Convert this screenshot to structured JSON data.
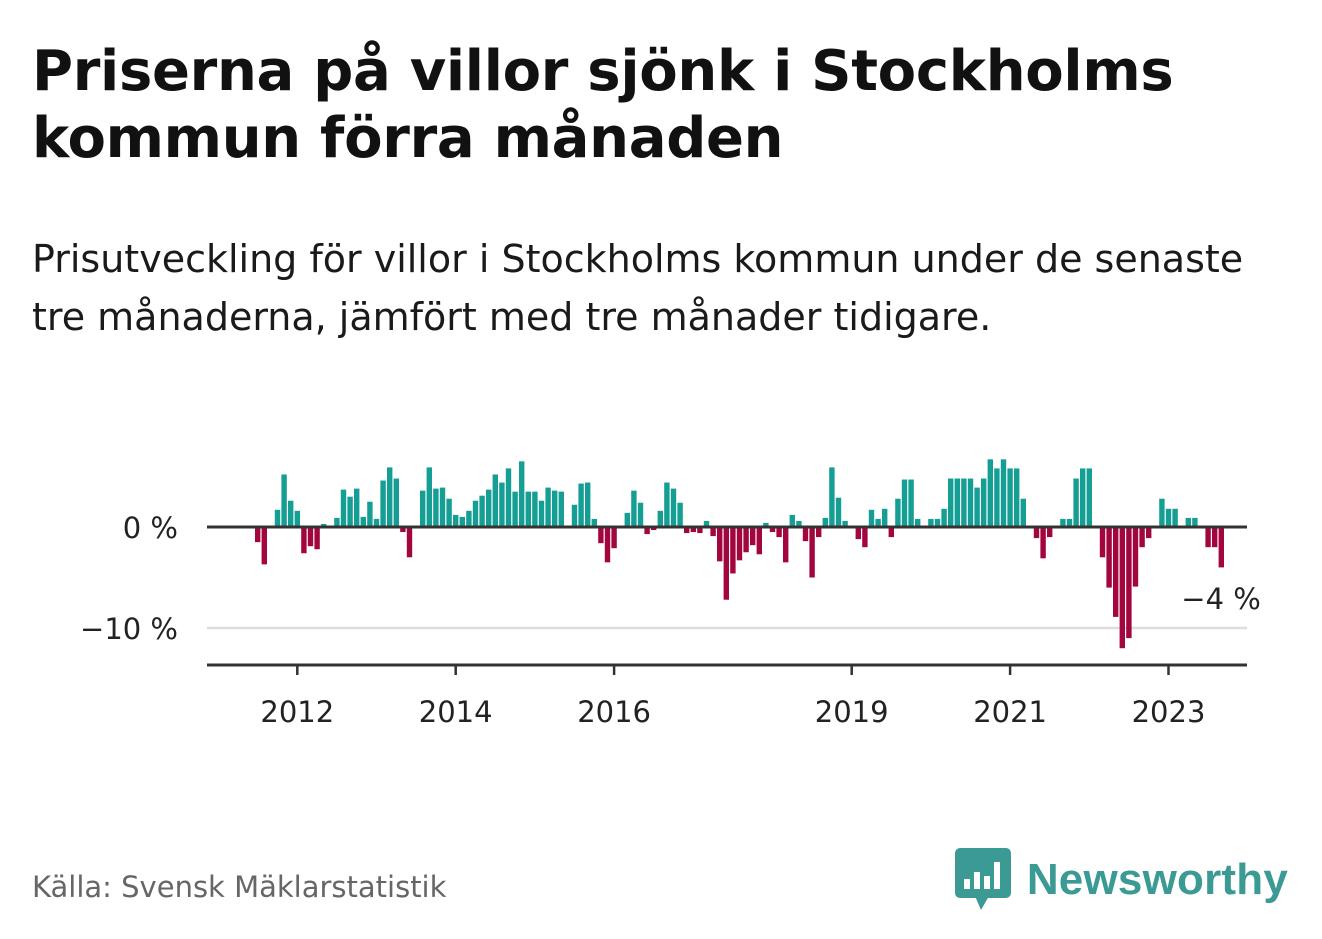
{
  "title": "Priserna på villor sjönk i Stockholms kommun förra månaden",
  "subtitle": "Prisutveckling för villor i Stockholms kommun under de senaste tre månaderna, jämfört med tre månader tidigare.",
  "source": "Källa: Svensk Mäklarstatistik",
  "brand": {
    "name": "Newsworthy",
    "logo_icon": "bar-chart-speech-bubble-icon",
    "color": "#3b9a94"
  },
  "colors": {
    "positive": "#159e94",
    "negative": "#a3053f",
    "axis": "#333333",
    "grid": "#dddddd"
  },
  "chart_data": {
    "type": "bar",
    "title": "",
    "xlabel": "",
    "ylabel": "",
    "unit": "%",
    "ylim": [
      -13.5,
      6.5
    ],
    "yticks": [
      0,
      -10
    ],
    "ytick_labels": [
      "0 %",
      "−10 %"
    ],
    "x_start": {
      "year": 2011,
      "month": 7
    },
    "xtick_labels": [
      "2012",
      "2014",
      "2016",
      "2019",
      "2021",
      "2023"
    ],
    "xtick_years": [
      2012,
      2014,
      2016,
      2019,
      2021,
      2023
    ],
    "annotation": {
      "label": "−4 %",
      "target": "last"
    },
    "values": [
      -1.5,
      -3.7,
      0,
      1.7,
      5.2,
      2.6,
      1.6,
      -2.6,
      -1.9,
      -2.2,
      0.3,
      0,
      0.9,
      3.7,
      3.0,
      3.8,
      1.0,
      2.5,
      0.8,
      4.6,
      5.9,
      4.8,
      -0.5,
      -3.0,
      0,
      3.6,
      5.9,
      3.8,
      3.9,
      2.8,
      1.2,
      1.0,
      1.6,
      2.6,
      3.1,
      3.7,
      5.2,
      4.4,
      5.8,
      3.5,
      6.5,
      3.5,
      3.5,
      2.6,
      3.9,
      3.6,
      3.5,
      0,
      2.2,
      4.3,
      4.4,
      0.8,
      -1.6,
      -3.5,
      -2.1,
      0,
      1.4,
      3.6,
      2.4,
      -0.7,
      -0.3,
      1.6,
      4.4,
      3.8,
      2.4,
      -0.6,
      -0.5,
      -0.6,
      0.6,
      -0.9,
      -3.4,
      -7.2,
      -4.6,
      -3.3,
      -2.5,
      -1.8,
      -2.7,
      0.4,
      -0.5,
      -1.0,
      -3.5,
      1.2,
      0.6,
      -1.4,
      -5.0,
      -1.0,
      0.9,
      5.9,
      2.9,
      0.6,
      0,
      -1.2,
      -2.0,
      1.7,
      0.8,
      1.8,
      -1.0,
      2.8,
      4.7,
      4.7,
      0.8,
      0,
      0.8,
      0.8,
      1.8,
      4.8,
      4.8,
      4.8,
      4.8,
      3.9,
      4.8,
      6.7,
      5.8,
      6.7,
      5.8,
      5.8,
      2.8,
      0,
      -1.1,
      -3.1,
      -1.0,
      0,
      0.8,
      0.8,
      4.8,
      5.8,
      5.8,
      0,
      -3.0,
      -6.0,
      -8.9,
      -12.0,
      -11.0,
      -5.9,
      -2.0,
      -1.1,
      0,
      2.8,
      1.8,
      1.8,
      0,
      0.9,
      0.9,
      0,
      -2.0,
      -2.0,
      -4.0
    ]
  }
}
